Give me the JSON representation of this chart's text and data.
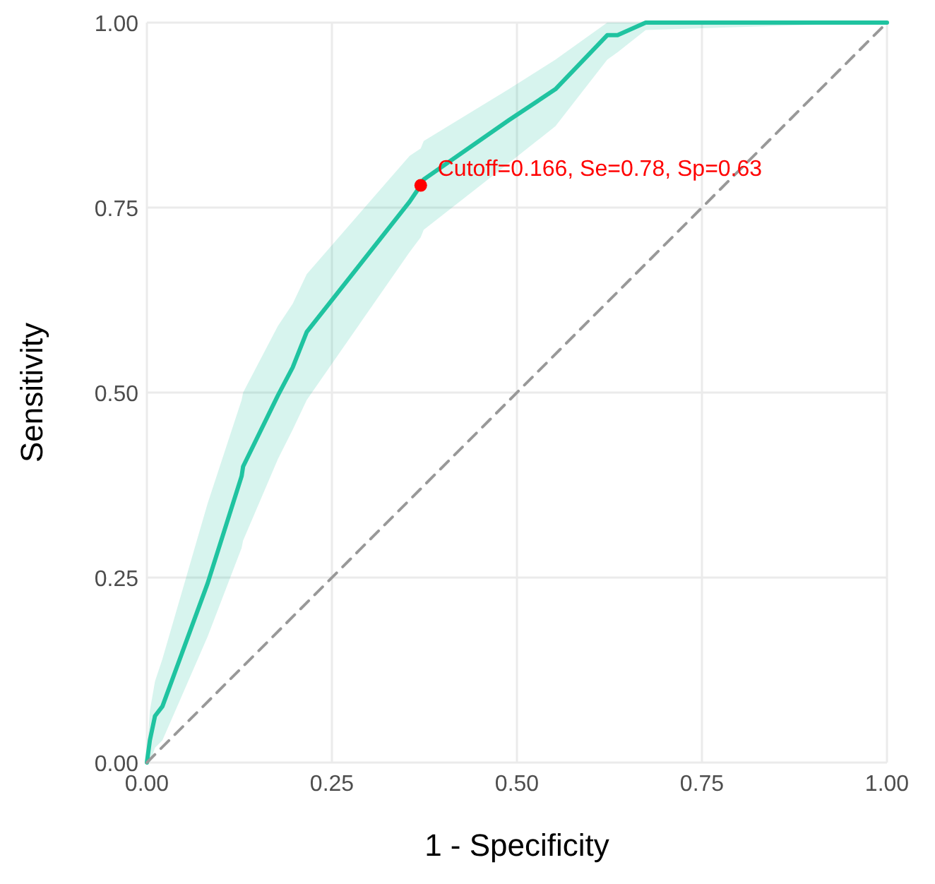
{
  "chart_data": {
    "type": "line",
    "xlabel": "1 - Specificity",
    "ylabel": "Sensitivity",
    "xlim": [
      0,
      1
    ],
    "ylim": [
      0,
      1
    ],
    "xticks": [
      {
        "value": 0,
        "label": "0.00"
      },
      {
        "value": 0.25,
        "label": "0.25"
      },
      {
        "value": 0.5,
        "label": "0.50"
      },
      {
        "value": 0.75,
        "label": "0.75"
      },
      {
        "value": 1,
        "label": "1.00"
      }
    ],
    "yticks": [
      {
        "value": 0,
        "label": "0.00"
      },
      {
        "value": 0.25,
        "label": "0.25"
      },
      {
        "value": 0.5,
        "label": "0.50"
      },
      {
        "value": 0.75,
        "label": "0.75"
      },
      {
        "value": 1,
        "label": "1.00"
      }
    ],
    "grid": true,
    "series": [
      {
        "color": "#1fc3a0",
        "line_style": "solid",
        "x": [
          0,
          0.004,
          0.011,
          0.021,
          0.082,
          0.128,
          0.13,
          0.177,
          0.197,
          0.216,
          0.355,
          0.37,
          0.374,
          0.489,
          0.552,
          0.622,
          0.636,
          0.674,
          1
        ],
        "values": [
          0,
          0.03,
          0.063,
          0.076,
          0.242,
          0.387,
          0.4,
          0.496,
          0.534,
          0.582,
          0.758,
          0.78,
          0.788,
          0.868,
          0.91,
          0.983,
          0.983,
          1,
          1
        ],
        "lower": [
          0,
          0,
          0.02,
          0.03,
          0.17,
          0.29,
          0.3,
          0.41,
          0.45,
          0.49,
          0.69,
          0.71,
          0.72,
          0.81,
          0.86,
          0.95,
          0.96,
          0.99,
          1
        ],
        "upper": [
          0.01,
          0.07,
          0.11,
          0.14,
          0.35,
          0.49,
          0.5,
          0.59,
          0.62,
          0.66,
          0.82,
          0.83,
          0.84,
          0.91,
          0.95,
          1,
          1,
          1,
          1
        ]
      },
      {
        "color": "#999999",
        "line_style": "dashed",
        "x": [
          0,
          1
        ],
        "values": [
          0,
          1
        ]
      },
      {
        "type": "scatter",
        "color": "#ff0000",
        "marker": "circle",
        "x": [
          0.37
        ],
        "values": [
          0.78
        ]
      }
    ],
    "annotations": [
      {
        "text": "Cutoff=0.166, Se=0.78, Sp=0.63",
        "x": 0.37,
        "y": 0.78
      }
    ]
  }
}
